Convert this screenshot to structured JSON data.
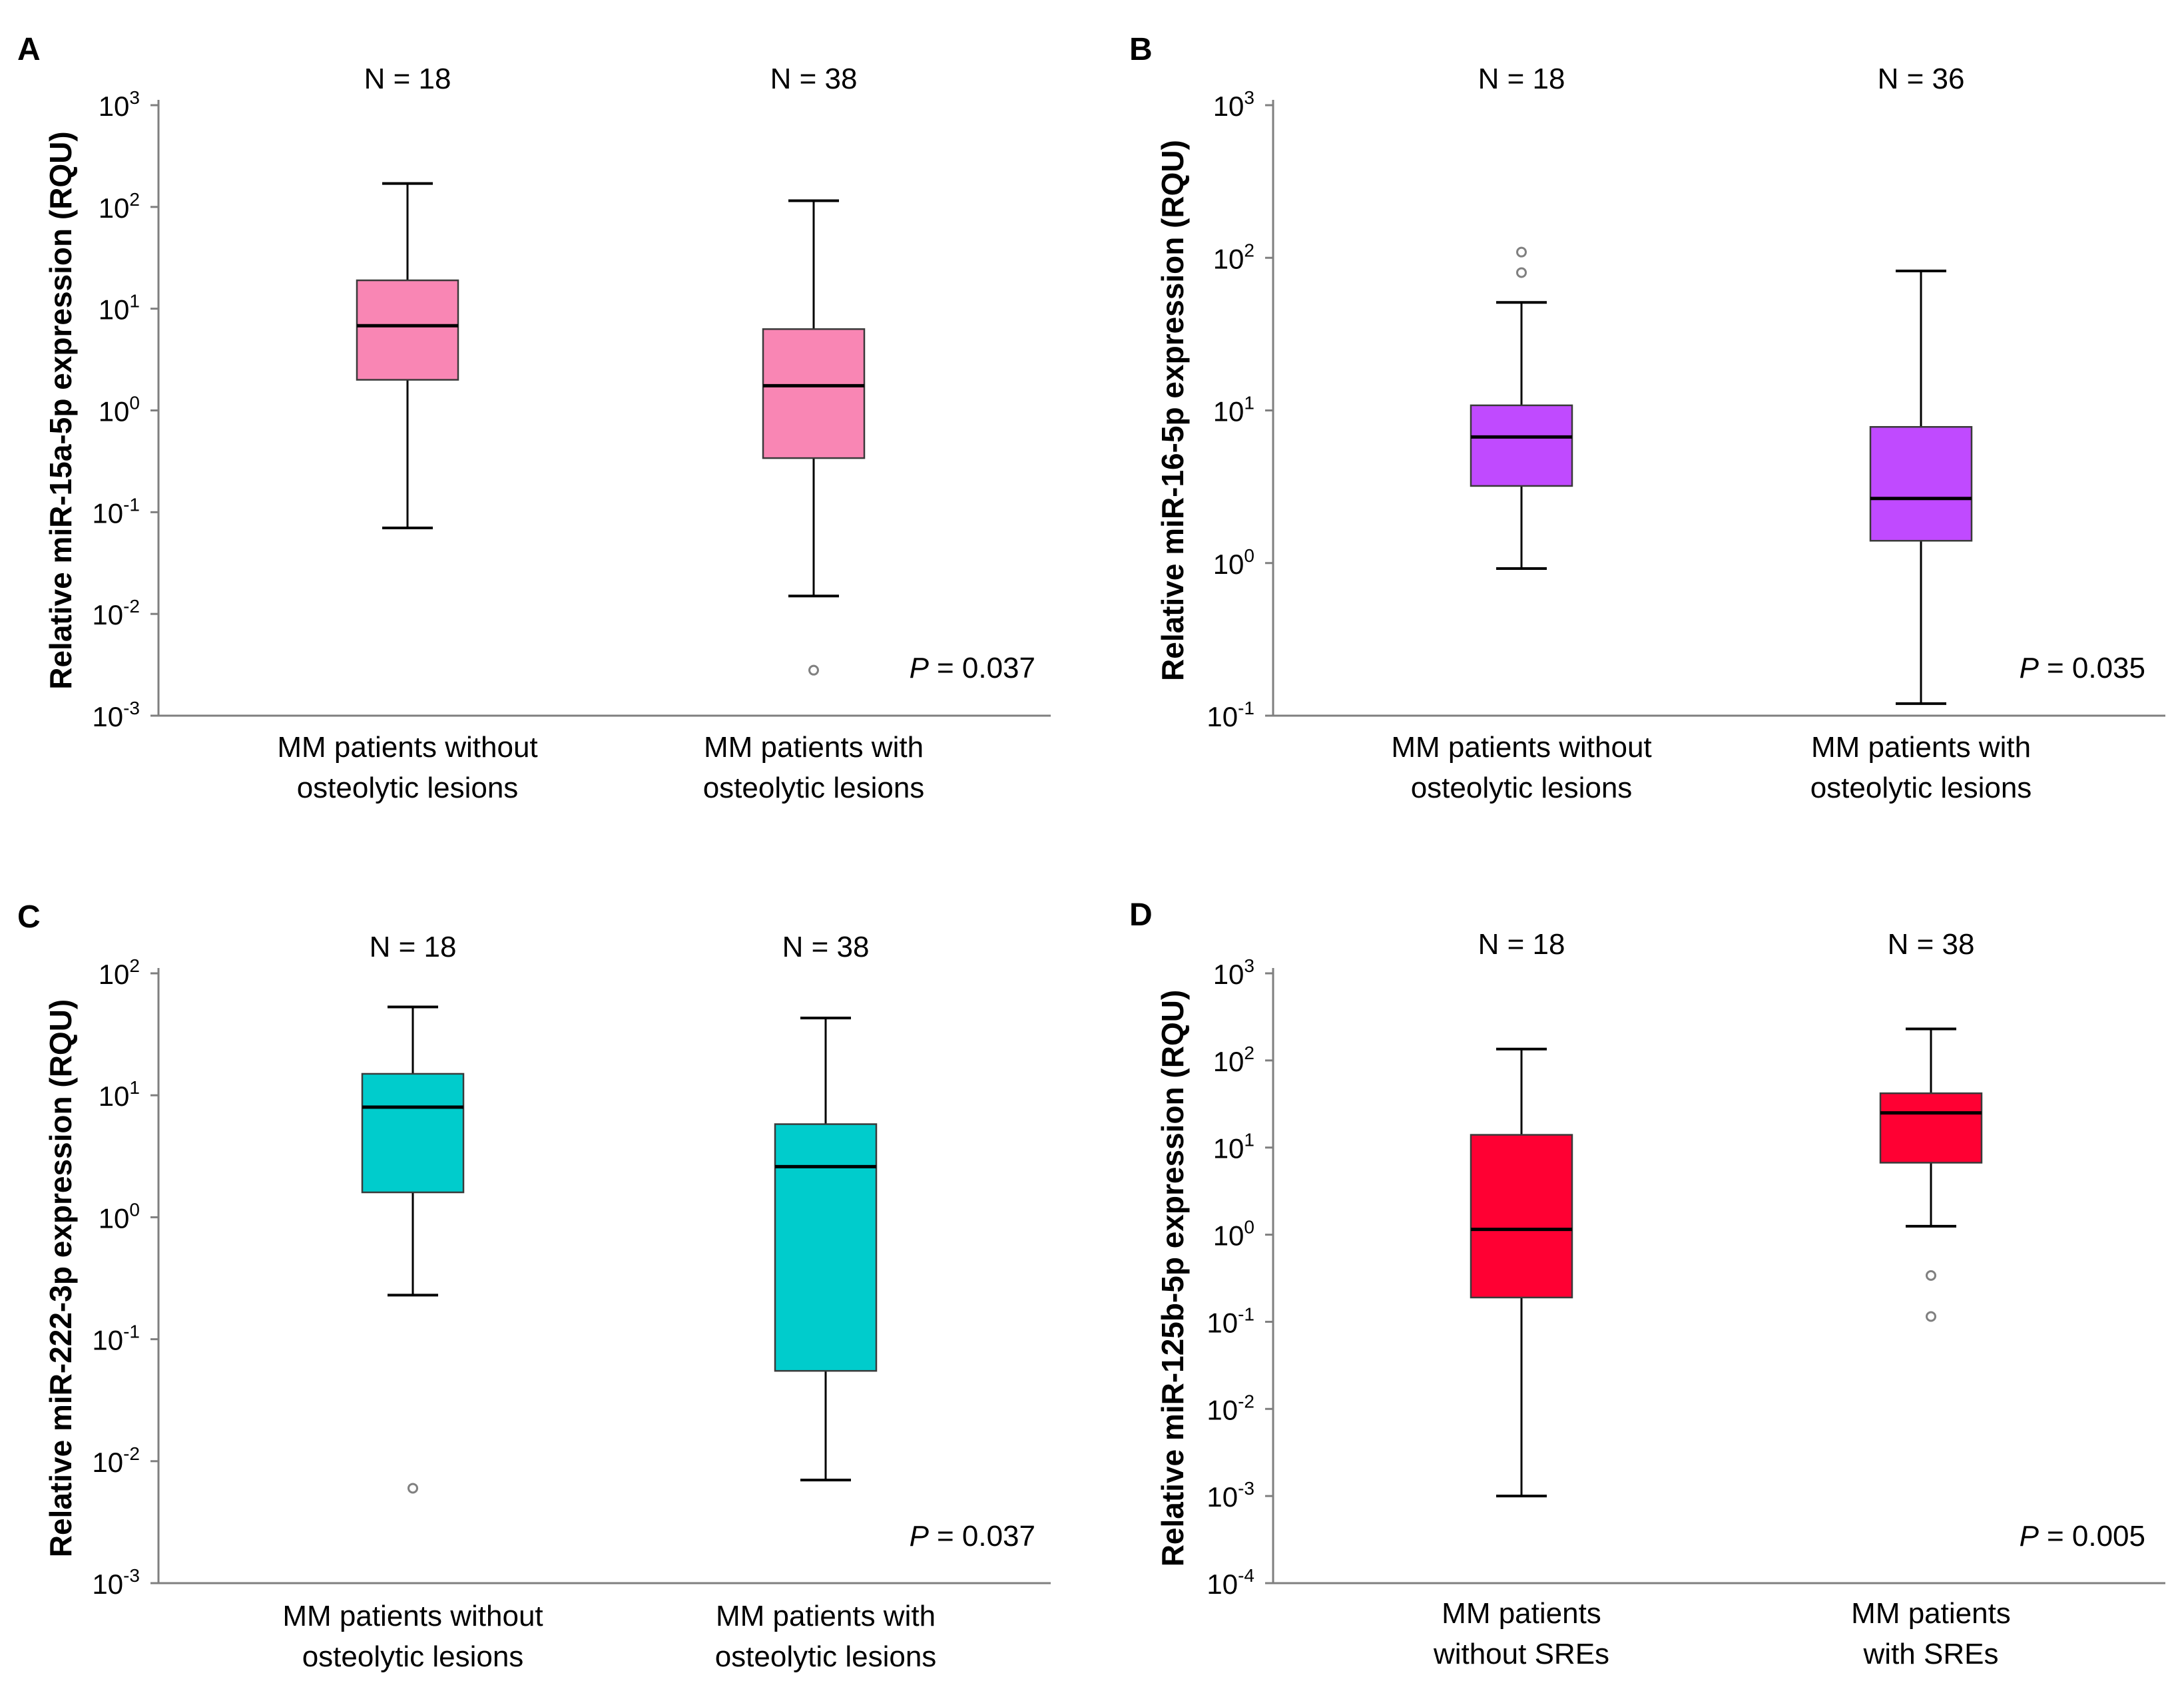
{
  "colors": {
    "A": "#f986b4",
    "B": "#c04aff",
    "C": "#00cccc",
    "D": "#ff0033",
    "axis": "#7f7f7f",
    "whisker": "#000000",
    "outlier": "#808080"
  },
  "chart_data": [
    {
      "panel": "A",
      "type": "box",
      "ylabel": "Relative miR-15a-5p expression (RQU)",
      "yscale": "log10",
      "ylim_exp": [
        -3,
        3
      ],
      "tick_labels": [
        {
          "base": "10",
          "exp": "3"
        },
        {
          "base": "10",
          "exp": "2"
        },
        {
          "base": "10",
          "exp": "1"
        },
        {
          "base": "10",
          "exp": "0"
        },
        {
          "base": "10",
          "exp": "-1"
        },
        {
          "base": "10",
          "exp": "-2"
        },
        {
          "base": "10",
          "exp": "-3"
        }
      ],
      "categories": [
        "MM patients without osteolytic lesions",
        "MM patients with osteolytic lesions"
      ],
      "category_lines": [
        [
          "MM patients without",
          "osteolytic lesions"
        ],
        [
          "MM patients with",
          "osteolytic lesions"
        ]
      ],
      "n_labels": [
        "N = 18",
        "N = 38"
      ],
      "boxes": [
        {
          "whisker_low": 0.07,
          "q1": 2.0,
          "median": 6.8,
          "q3": 19,
          "whisker_high": 170,
          "outliers": []
        },
        {
          "whisker_low": 0.015,
          "q1": 0.34,
          "median": 1.75,
          "q3": 6.3,
          "whisker_high": 115,
          "outliers": [
            0.0028
          ]
        }
      ],
      "p_label": "P",
      "p_value": "= 0.037"
    },
    {
      "panel": "B",
      "type": "box",
      "ylabel": "Relative miR-16-5p expression (RQU)",
      "yscale": "log10",
      "ylim_exp": [
        -1,
        3
      ],
      "tick_labels": [
        {
          "base": "10",
          "exp": "3"
        },
        {
          "base": "10",
          "exp": "2"
        },
        {
          "base": "10",
          "exp": "1"
        },
        {
          "base": "10",
          "exp": "0"
        },
        {
          "base": "10",
          "exp": "-1"
        }
      ],
      "categories": [
        "MM patients without osteolytic lesions",
        "MM patients with osteolytic lesions"
      ],
      "category_lines": [
        [
          "MM patients without",
          "osteolytic lesions"
        ],
        [
          "MM patients with",
          "osteolytic lesions"
        ]
      ],
      "n_labels": [
        "N = 18",
        "N = 36"
      ],
      "boxes": [
        {
          "whisker_low": 0.92,
          "q1": 3.2,
          "median": 6.7,
          "q3": 10.8,
          "whisker_high": 51,
          "outliers": [
            109,
            80
          ]
        },
        {
          "whisker_low": 0.12,
          "q1": 1.4,
          "median": 2.65,
          "q3": 7.8,
          "whisker_high": 82,
          "outliers": []
        }
      ],
      "p_label": "P",
      "p_value": "= 0.035"
    },
    {
      "panel": "C",
      "type": "box",
      "ylabel": "Relative miR-222-3p expression (RQU)",
      "yscale": "log10",
      "ylim_exp": [
        -3,
        2
      ],
      "tick_labels": [
        {
          "base": "10",
          "exp": "2"
        },
        {
          "base": "10",
          "exp": "1"
        },
        {
          "base": "10",
          "exp": "0"
        },
        {
          "base": "10",
          "exp": "-1"
        },
        {
          "base": "10",
          "exp": "-2"
        },
        {
          "base": "10",
          "exp": "-3"
        }
      ],
      "categories": [
        "MM patients without osteolytic lesions",
        "MM patients with osteolytic lesions"
      ],
      "category_lines": [
        [
          "MM patients without",
          "osteolytic lesions"
        ],
        [
          "MM patients with",
          "osteolytic lesions"
        ]
      ],
      "n_labels": [
        "N = 18",
        "N = 38"
      ],
      "boxes": [
        {
          "whisker_low": 0.23,
          "q1": 1.6,
          "median": 8.0,
          "q3": 15,
          "whisker_high": 53,
          "outliers": [
            0.006
          ]
        },
        {
          "whisker_low": 0.007,
          "q1": 0.055,
          "median": 2.6,
          "q3": 5.8,
          "whisker_high": 43,
          "outliers": []
        }
      ],
      "p_label": "P",
      "p_value": "= 0.037"
    },
    {
      "panel": "D",
      "type": "box",
      "ylabel": "Relative miR-125b-5p expression (RQU)",
      "yscale": "log10",
      "ylim_exp": [
        -4,
        3
      ],
      "tick_labels": [
        {
          "base": "10",
          "exp": "3"
        },
        {
          "base": "10",
          "exp": "2"
        },
        {
          "base": "10",
          "exp": "1"
        },
        {
          "base": "10",
          "exp": "0"
        },
        {
          "base": "10",
          "exp": "-1"
        },
        {
          "base": "10",
          "exp": "-2"
        },
        {
          "base": "10",
          "exp": "-3"
        },
        {
          "base": "10",
          "exp": "-4"
        }
      ],
      "categories": [
        "MM patients without SREs",
        "MM patients with SREs"
      ],
      "category_lines": [
        [
          "MM patients",
          "without SREs"
        ],
        [
          "MM patients",
          "with SREs"
        ]
      ],
      "n_labels": [
        "N = 18",
        "N = 38"
      ],
      "boxes": [
        {
          "whisker_low": 0.001,
          "q1": 0.19,
          "median": 1.15,
          "q3": 14,
          "whisker_high": 135,
          "outliers": []
        },
        {
          "whisker_low": 1.25,
          "q1": 6.7,
          "median": 25,
          "q3": 42,
          "whisker_high": 230,
          "outliers": [
            0.34,
            0.115
          ]
        }
      ],
      "p_label": "P",
      "p_value": "= 0.005"
    }
  ]
}
